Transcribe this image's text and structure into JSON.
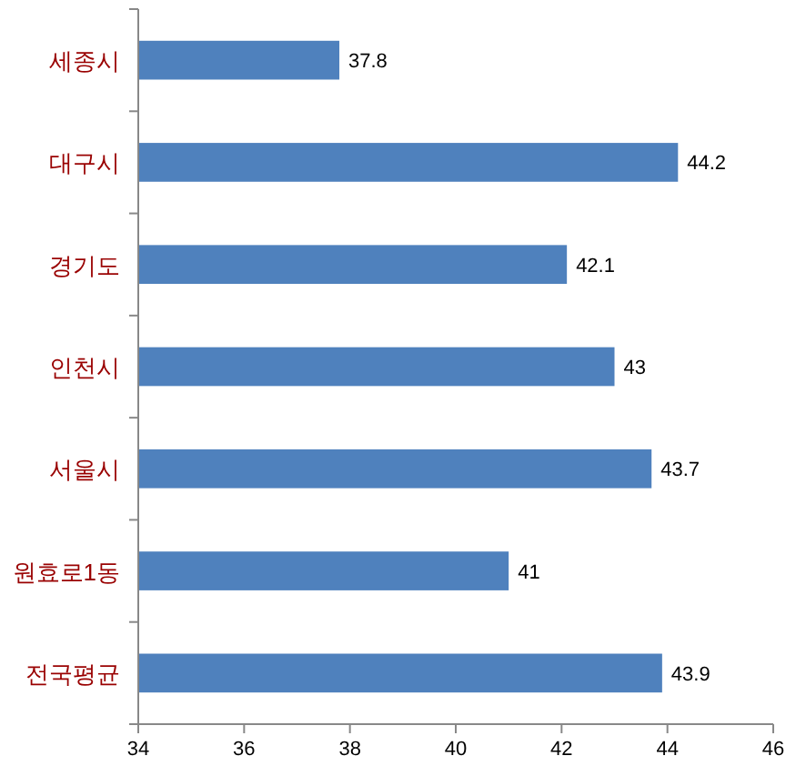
{
  "chart_data": {
    "type": "bar",
    "orientation": "horizontal",
    "categories": [
      "세종시",
      "대구시",
      "경기도",
      "인천시",
      "서울시",
      "원효로1동",
      "전국평균"
    ],
    "values": [
      37.8,
      44.2,
      42.1,
      43,
      43.7,
      41,
      43.9
    ],
    "color": "#4f81bd",
    "data_labels": true,
    "xlim": [
      34,
      46
    ],
    "xticks": [
      34,
      36,
      38,
      40,
      42,
      44,
      46
    ],
    "grid": false
  }
}
